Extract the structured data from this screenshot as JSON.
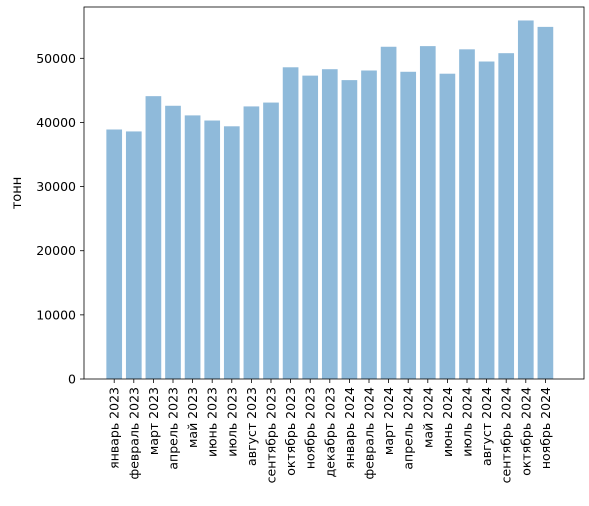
{
  "chart_data": {
    "type": "bar",
    "title": "",
    "xlabel": "",
    "ylabel": "тонн",
    "ylim": [
      0,
      58000
    ],
    "yticks": [
      0,
      10000,
      20000,
      30000,
      40000,
      50000
    ],
    "grid": false,
    "bar_color": "#8fbada",
    "categories": [
      "январь 2023",
      "февраль 2023",
      "март 2023",
      "апрель 2023",
      "май 2023",
      "июнь 2023",
      "июль 2023",
      "август 2023",
      "сентябрь 2023",
      "октябрь 2023",
      "ноябрь 2023",
      "декабрь 2023",
      "январь 2024",
      "февраль 2024",
      "март 2024",
      "апрель 2024",
      "май 2024",
      "июнь 2024",
      "июль 2024",
      "август 2024",
      "сентябрь 2024",
      "октябрь 2024",
      "ноябрь 2024"
    ],
    "values": [
      38900,
      38600,
      44100,
      42600,
      41100,
      40300,
      39400,
      42500,
      43100,
      48600,
      47300,
      48300,
      46600,
      48100,
      51800,
      47900,
      51900,
      47600,
      51400,
      49500,
      50800,
      55900,
      54900
    ]
  }
}
